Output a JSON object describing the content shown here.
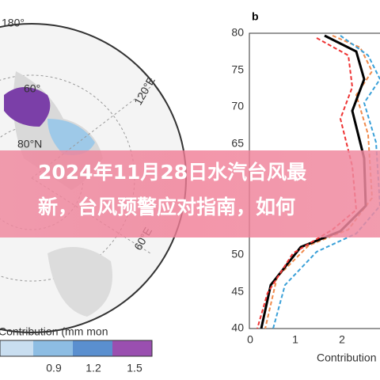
{
  "header": {
    "title_lines": [
      "2024年11月28日水汽台风最",
      "新，台风预警应对指南，如何"
    ]
  },
  "figure": {
    "map": {
      "labels": [
        "180°",
        "60°",
        "120°E",
        "80°N",
        "60°E"
      ],
      "colorbar_label": "Contribution (mm mon",
      "colorbar_ticks": [
        "0.9",
        "1.2",
        "1.5"
      ]
    },
    "plot": {
      "panel": "b",
      "yticks": [
        "80",
        "75",
        "70",
        "65",
        "50",
        "45",
        "40"
      ],
      "xticks": [
        "0",
        "1",
        "2"
      ],
      "xlabel": "Contribution"
    }
  }
}
